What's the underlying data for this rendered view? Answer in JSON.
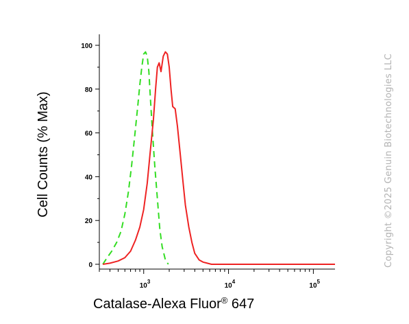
{
  "chart_data": {
    "type": "line",
    "xscale": "log",
    "xlim": [
      300,
      180000
    ],
    "ylim": [
      0,
      100
    ],
    "xlabel": "Catalase-Alexa Fluor",
    "xlabel_sup": "®",
    "xlabel_suffix": " 647",
    "ylabel": "Cell Counts (% Max)",
    "y_ticks": [
      {
        "value": 0,
        "label": "0"
      },
      {
        "value": 20,
        "label": "20"
      },
      {
        "value": 40,
        "label": "40"
      },
      {
        "value": 60,
        "label": "60"
      },
      {
        "value": 80,
        "label": "80"
      },
      {
        "value": 100,
        "label": "100"
      }
    ],
    "x_ticks": [
      {
        "value": 1000,
        "base": "10",
        "exp": "3"
      },
      {
        "value": 10000,
        "base": "10",
        "exp": "4"
      },
      {
        "value": 100000,
        "base": "10",
        "exp": "5"
      }
    ],
    "grid": false,
    "series": [
      {
        "style": "dashed",
        "color": "#33dd22",
        "x": [
          330,
          370,
          420,
          480,
          540,
          600,
          660,
          720,
          790,
          850,
          900,
          950,
          1000,
          1050,
          1100,
          1150,
          1200,
          1270,
          1350,
          1450,
          1550,
          1650,
          1800,
          1950
        ],
        "y": [
          0,
          3,
          6,
          10,
          15,
          23,
          33,
          45,
          60,
          72,
          82,
          90,
          96,
          97,
          95,
          88,
          76,
          60,
          45,
          30,
          16,
          8,
          2,
          0
        ]
      },
      {
        "style": "solid",
        "color": "#ee2222",
        "x": [
          330,
          400,
          500,
          600,
          700,
          800,
          900,
          1000,
          1100,
          1200,
          1300,
          1380,
          1450,
          1520,
          1600,
          1700,
          1800,
          1900,
          2000,
          2100,
          2200,
          2350,
          2500,
          2700,
          2900,
          3100,
          3400,
          3700,
          4000,
          4500,
          5000,
          5600,
          6300,
          8000,
          20000,
          60000,
          180000
        ],
        "y": [
          0,
          0.5,
          1.5,
          3,
          6,
          11,
          17,
          25,
          37,
          52,
          66,
          80,
          90,
          92,
          88,
          95,
          97,
          96,
          90,
          80,
          72,
          71,
          63,
          50,
          38,
          27,
          17,
          10,
          5,
          2,
          1,
          0.5,
          0,
          0,
          0,
          0,
          0
        ]
      }
    ]
  },
  "watermark": "Copyright ©2025 Genuin Biotechnologies LLC"
}
